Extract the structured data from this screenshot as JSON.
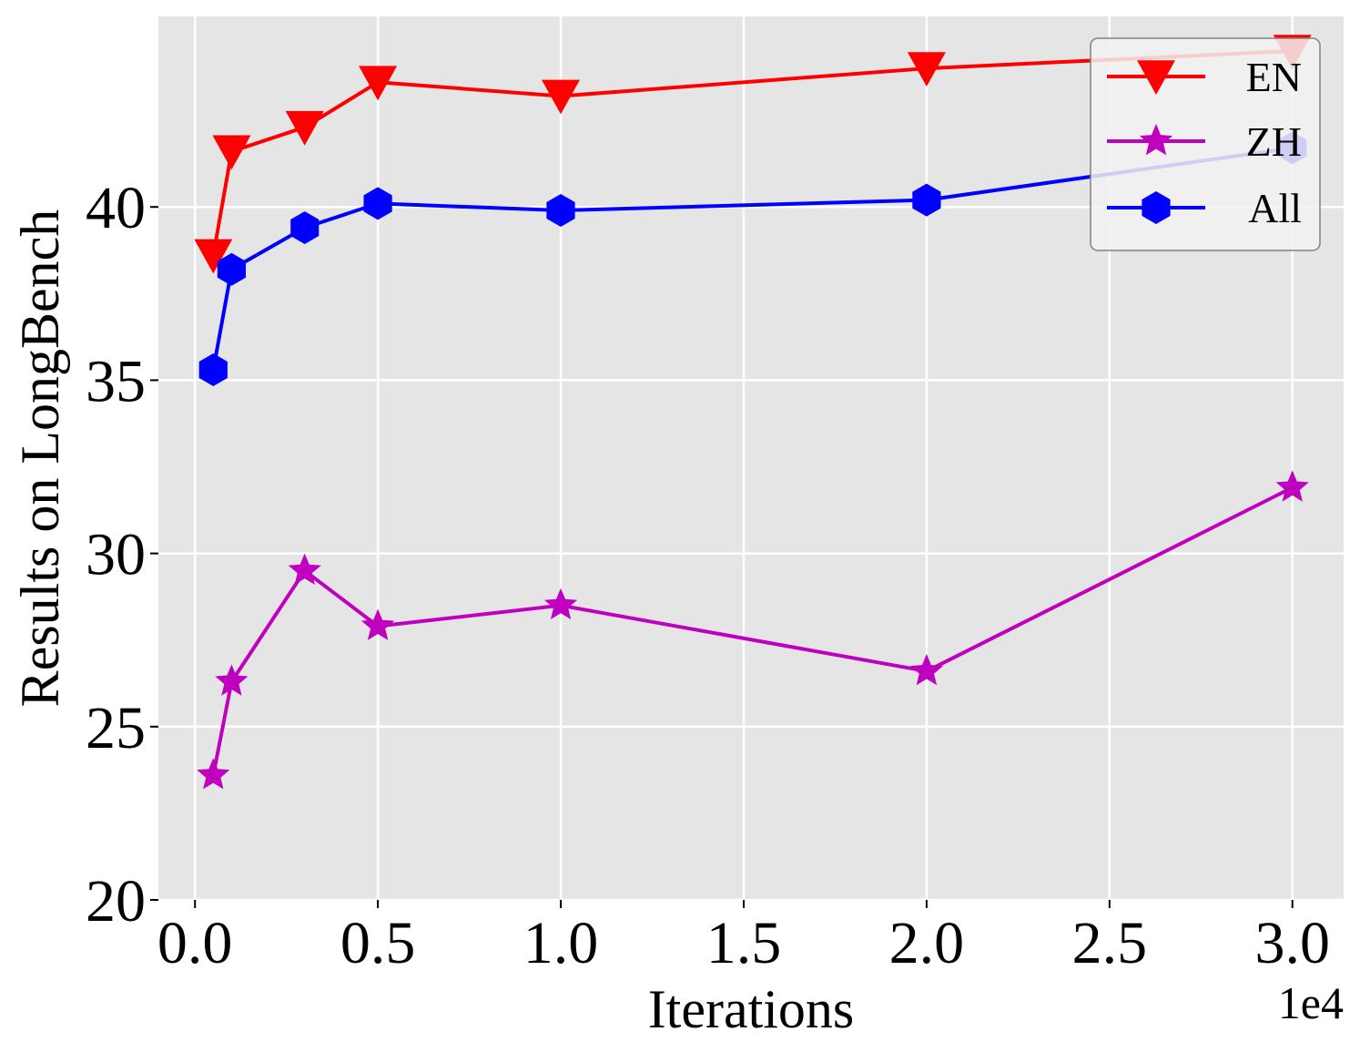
{
  "chart_data": {
    "type": "line",
    "title": "",
    "xlabel": "Iterations",
    "ylabel": "Results on LongBench",
    "x_offset_label": "1e4",
    "xlim": [
      -0.1,
      3.14
    ],
    "ylim": [
      20,
      45.5
    ],
    "xticks": [
      0.0,
      0.5,
      1.0,
      1.5,
      2.0,
      2.5,
      3.0
    ],
    "xtick_labels": [
      "0.0",
      "0.5",
      "1.0",
      "1.5",
      "2.0",
      "2.5",
      "3.0"
    ],
    "yticks": [
      20,
      25,
      30,
      35,
      40
    ],
    "ytick_labels": [
      "20",
      "25",
      "30",
      "35",
      "40"
    ],
    "grid": true,
    "legend_position": "top-right",
    "x": [
      0.05,
      0.1,
      0.3,
      0.5,
      1.0,
      2.0,
      3.0
    ],
    "series": [
      {
        "name": "EN",
        "color": "#ff0000",
        "marker": "triangle-down",
        "values": [
          38.6,
          41.6,
          42.3,
          43.6,
          43.2,
          44.0,
          44.5
        ]
      },
      {
        "name": "ZH",
        "color": "#bf00bf",
        "marker": "star",
        "values": [
          23.6,
          26.3,
          29.5,
          27.9,
          28.5,
          26.6,
          31.9
        ]
      },
      {
        "name": "All",
        "color": "#0000ff",
        "marker": "hexagon",
        "values": [
          35.3,
          38.2,
          39.4,
          40.1,
          39.9,
          40.2,
          41.7
        ]
      }
    ]
  }
}
